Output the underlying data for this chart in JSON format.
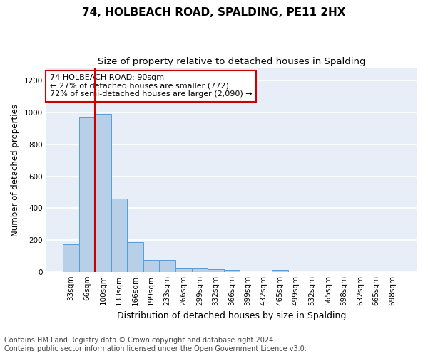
{
  "title": "74, HOLBEACH ROAD, SPALDING, PE11 2HX",
  "subtitle": "Size of property relative to detached houses in Spalding",
  "xlabel": "Distribution of detached houses by size in Spalding",
  "ylabel": "Number of detached properties",
  "categories": [
    "33sqm",
    "66sqm",
    "100sqm",
    "133sqm",
    "166sqm",
    "199sqm",
    "233sqm",
    "266sqm",
    "299sqm",
    "332sqm",
    "366sqm",
    "399sqm",
    "432sqm",
    "465sqm",
    "499sqm",
    "532sqm",
    "565sqm",
    "598sqm",
    "632sqm",
    "665sqm",
    "698sqm"
  ],
  "values": [
    175,
    970,
    990,
    460,
    185,
    75,
    75,
    22,
    20,
    15,
    10,
    0,
    0,
    10,
    0,
    0,
    0,
    0,
    0,
    0,
    0
  ],
  "bar_color": "#b8cfe8",
  "bar_edge_color": "#5b9bd5",
  "vline_x_idx": 1.5,
  "vline_color": "#cc0000",
  "annotation_text": "74 HOLBEACH ROAD: 90sqm\n← 27% of detached houses are smaller (772)\n72% of semi-detached houses are larger (2,090) →",
  "annotation_box_color": "#ffffff",
  "annotation_box_edge": "#cc0000",
  "ylim": [
    0,
    1280
  ],
  "yticks": [
    0,
    200,
    400,
    600,
    800,
    1000,
    1200
  ],
  "plot_bg_color": "#e8eef8",
  "fig_bg_color": "#ffffff",
  "grid_color": "#ffffff",
  "footer": "Contains HM Land Registry data © Crown copyright and database right 2024.\nContains public sector information licensed under the Open Government Licence v3.0.",
  "title_fontsize": 11,
  "subtitle_fontsize": 9.5,
  "xlabel_fontsize": 9,
  "ylabel_fontsize": 8.5,
  "tick_fontsize": 7.5,
  "footer_fontsize": 7,
  "annot_fontsize": 8
}
